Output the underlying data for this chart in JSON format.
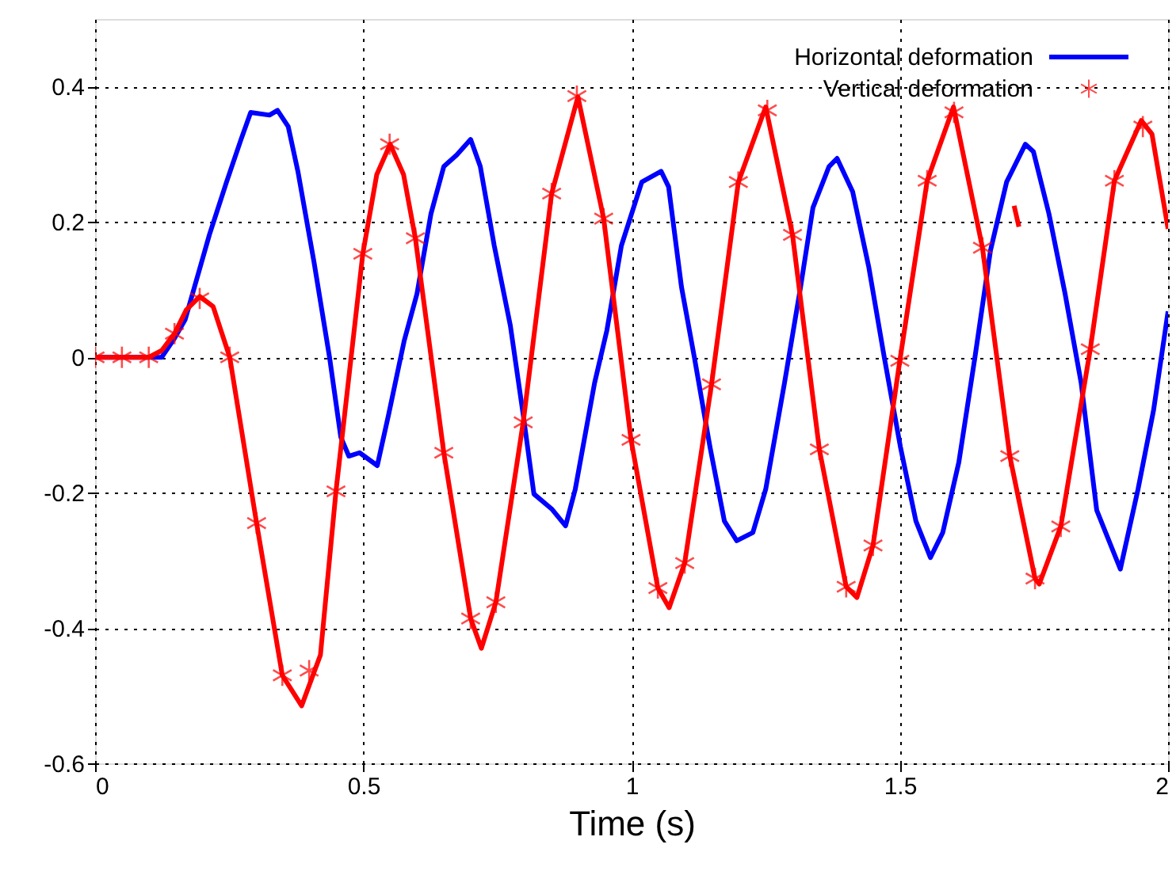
{
  "chart_data": {
    "type": "line",
    "xlabel": "Time (s)",
    "xlim": [
      0,
      2
    ],
    "xticks": [
      {
        "value": 0,
        "label": "0"
      },
      0.5,
      {
        "value": 1,
        "label": "1"
      },
      1.5,
      {
        "value": 2,
        "label": "2"
      }
    ],
    "ylim": [
      -0.6,
      0.5
    ],
    "yticks": [
      -0.6,
      -0.4,
      -0.2,
      {
        "value": 0,
        "label": "0"
      },
      0.2,
      0.4
    ],
    "grid": true,
    "legend": "top right",
    "line_style": "solid",
    "series": [
      {
        "name": "Horizontal deformation",
        "marker": "none",
        "color": "#0000ff",
        "x": [
          0,
          0.124,
          0.148,
          0.168,
          0.213,
          0.245,
          0.272,
          0.29,
          0.325,
          0.34,
          0.36,
          0.378,
          0.408,
          0.437,
          0.458,
          0.473,
          0.493,
          0.526,
          0.547,
          0.576,
          0.6,
          0.626,
          0.65,
          0.674,
          0.7,
          0.718,
          0.744,
          0.774,
          0.798,
          0.818,
          0.851,
          0.877,
          0.895,
          0.931,
          0.954,
          0.981,
          1.019,
          1.055,
          1.069,
          1.093,
          1.117,
          1.146,
          1.173,
          1.196,
          1.226,
          1.25,
          1.285,
          1.315,
          1.338,
          1.368,
          1.383,
          1.412,
          1.442,
          1.471,
          1.501,
          1.53,
          1.557,
          1.58,
          1.61,
          1.64,
          1.669,
          1.699,
          1.734,
          1.749,
          1.778,
          1.808,
          1.838,
          1.867,
          1.911,
          1.944,
          1.973,
          2.0
        ],
        "values": [
          0,
          0,
          0.028,
          0.056,
          0.181,
          0.259,
          0.322,
          0.362,
          0.358,
          0.365,
          0.341,
          0.275,
          0.141,
          0,
          -0.118,
          -0.146,
          -0.141,
          -0.16,
          -0.085,
          0.024,
          0.094,
          0.212,
          0.282,
          0.299,
          0.322,
          0.282,
          0.165,
          0.047,
          -0.085,
          -0.202,
          -0.224,
          -0.249,
          -0.195,
          -0.038,
          0.04,
          0.165,
          0.259,
          0.275,
          0.252,
          0.104,
          0,
          -0.132,
          -0.242,
          -0.271,
          -0.259,
          -0.195,
          -0.038,
          0.104,
          0.221,
          0.282,
          0.294,
          0.245,
          0.134,
          0,
          -0.132,
          -0.242,
          -0.296,
          -0.259,
          -0.155,
          0,
          0.158,
          0.259,
          0.315,
          0.304,
          0.212,
          0.094,
          -0.038,
          -0.226,
          -0.313,
          -0.195,
          -0.078,
          0.068
        ]
      },
      {
        "name": "Vertical deformation",
        "type": "scatter",
        "marker": "cross",
        "color": "#ff0000",
        "x": [
          0,
          0.05,
          0.1,
          0.148,
          0.195,
          0.251,
          0.301,
          0.349,
          0.399,
          0.449,
          0.499,
          0.549,
          0.597,
          0.65,
          0.7,
          0.747,
          0.798,
          0.851,
          0.898,
          0.948,
          0.999,
          1.049,
          1.099,
          1.149,
          1.199,
          1.253,
          1.3,
          1.35,
          1.4,
          1.45,
          1.5,
          1.551,
          1.601,
          1.654,
          1.705,
          1.752,
          1.8,
          1.855,
          1.9,
          1.953
        ],
        "values": [
          0,
          0,
          0,
          0.035,
          0.087,
          0,
          -0.245,
          -0.47,
          -0.463,
          -0.198,
          0.153,
          0.315,
          0.176,
          -0.141,
          -0.386,
          -0.362,
          -0.096,
          0.242,
          0.386,
          0.205,
          -0.122,
          -0.341,
          -0.304,
          -0.04,
          0.259,
          0.365,
          0.181,
          -0.136,
          -0.339,
          -0.278,
          -0.005,
          0.261,
          0.362,
          0.162,
          -0.146,
          -0.327,
          -0.25,
          0.012,
          0.261,
          0.341
        ]
      },
      {
        "marker": "none",
        "color": "#ff0000",
        "x": [
          0,
          0.1,
          0.124,
          0.148,
          0.17,
          0.195,
          0.22,
          0.251,
          0.301,
          0.349,
          0.385,
          0.42,
          0.449,
          0.499,
          0.525,
          0.55,
          0.575,
          0.597,
          0.65,
          0.7,
          0.72,
          0.747,
          0.798,
          0.851,
          0.9,
          0.948,
          0.999,
          1.049,
          1.07,
          1.099,
          1.149,
          1.199,
          1.25,
          1.3,
          1.35,
          1.4,
          1.42,
          1.45,
          1.5,
          1.551,
          1.6,
          1.654,
          1.705,
          1.752,
          1.76,
          1.8,
          1.855,
          1.9,
          1.95,
          1.97,
          2.0
        ],
        "values": [
          0,
          0,
          0.01,
          0.035,
          0.07,
          0.09,
          0.075,
          0,
          -0.245,
          -0.47,
          -0.515,
          -0.44,
          -0.198,
          0.153,
          0.27,
          0.315,
          0.27,
          0.176,
          -0.141,
          -0.386,
          -0.43,
          -0.362,
          -0.096,
          0.242,
          0.385,
          0.205,
          -0.122,
          -0.341,
          -0.37,
          -0.304,
          -0.04,
          0.259,
          0.37,
          0.181,
          -0.136,
          -0.339,
          -0.355,
          -0.278,
          -0.005,
          0.261,
          0.37,
          0.162,
          -0.146,
          -0.327,
          -0.335,
          -0.25,
          0.012,
          0.261,
          0.35,
          0.33,
          0.19
        ]
      },
      {
        "marker": "none",
        "color": "#ff0000",
        "x": [
          1.713,
          1.722
        ],
        "values": [
          0.224,
          0.193
        ]
      }
    ]
  }
}
